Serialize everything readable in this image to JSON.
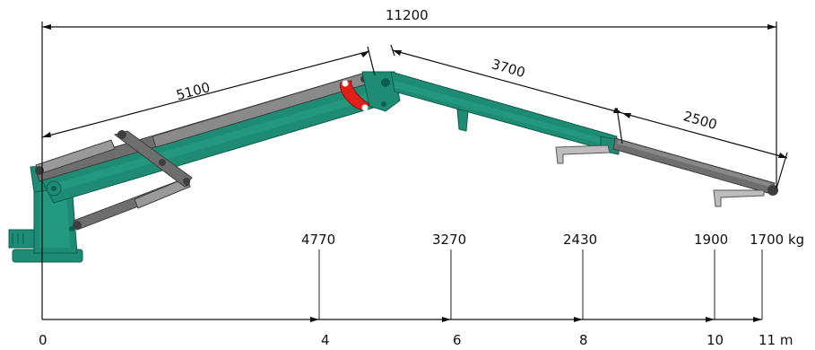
{
  "dimensions": {
    "total": "11200",
    "inner_boom": "5100",
    "outer_boom": "3700",
    "extension": "2500"
  },
  "capacities": [
    {
      "label": "4770"
    },
    {
      "label": "3270"
    },
    {
      "label": "2430"
    },
    {
      "label": "1900"
    },
    {
      "label": "1700 kg"
    }
  ],
  "axis": {
    "ticks": [
      "0",
      "4",
      "6",
      "8",
      "10",
      "11 m"
    ]
  },
  "colors": {
    "boom_green": "#1e8c74",
    "boom_green_dark": "#0f5e4d",
    "cylinder_grey": "#6e6e6e",
    "cylinder_grey_light": "#9a9a9a",
    "link_red": "#e0201a"
  }
}
